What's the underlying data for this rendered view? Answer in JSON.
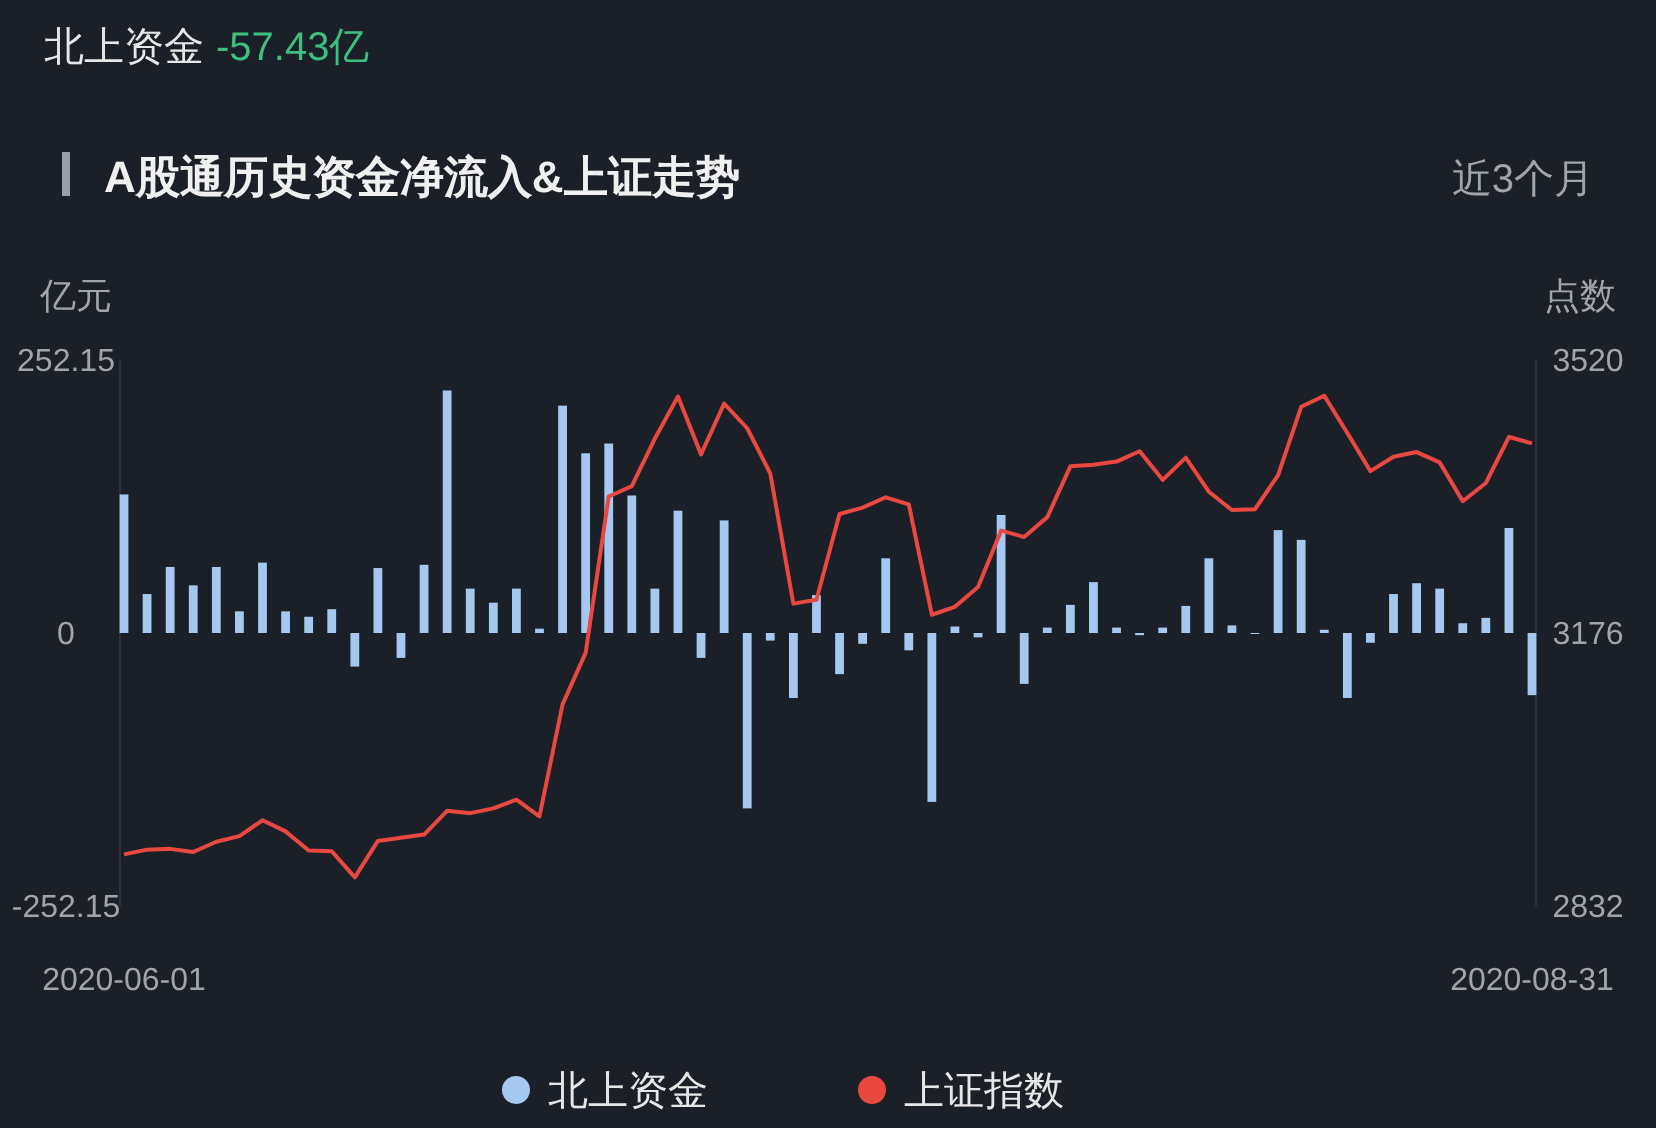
{
  "chart_data": {
    "type": "bar",
    "title": "A股通历史资金净流入&上证走势",
    "annotations": [
      "北上资金 -57.43亿",
      "近3个月"
    ],
    "ylabel": "亿元",
    "y2label": "点数",
    "categories": [
      "2020-06-01",
      null,
      null,
      null,
      null,
      null,
      null,
      null,
      null,
      null,
      null,
      null,
      null,
      null,
      null,
      null,
      null,
      null,
      null,
      null,
      null,
      null,
      null,
      null,
      null,
      null,
      null,
      null,
      null,
      null,
      null,
      null,
      null,
      null,
      null,
      null,
      null,
      null,
      null,
      null,
      null,
      null,
      null,
      null,
      null,
      null,
      null,
      null,
      null,
      null,
      null,
      null,
      null,
      null,
      null,
      null,
      null,
      null,
      null,
      null,
      null,
      "2020-08-31"
    ],
    "series": [
      {
        "name": "北上资金",
        "color": "#a4c8f0",
        "values": [
          128,
          36,
          61,
          44,
          61,
          20,
          65,
          20,
          15,
          22,
          -31,
          60,
          -23,
          63,
          224,
          41,
          28,
          41,
          4,
          210,
          166,
          175,
          127,
          41,
          113,
          -23,
          104,
          -162,
          -7,
          -60,
          35,
          -38,
          -10,
          69,
          -16,
          -156,
          6,
          -4,
          109,
          -47,
          5,
          26,
          47,
          5,
          -2,
          5,
          25,
          69,
          7,
          0,
          95,
          86,
          3,
          -60,
          -9,
          36,
          46,
          41,
          9,
          14,
          97,
          -57.43
        ]
      },
      {
        "name": "上证指数",
        "type": "line",
        "axis": "y2",
        "color": "#e8483f",
        "values": [
          2897,
          2903,
          2904,
          2900,
          2913,
          2920,
          2940,
          2926,
          2902,
          2901,
          2868,
          2914,
          2918,
          2922,
          2952,
          2949,
          2955,
          2966,
          2945,
          3086,
          3151,
          3348,
          3361,
          3421,
          3474,
          3401,
          3465,
          3434,
          3377,
          3213,
          3218,
          3326,
          3334,
          3347,
          3338,
          3199,
          3209,
          3234,
          3305,
          3297,
          3322,
          3386,
          3388,
          3392,
          3405,
          3369,
          3397,
          3354,
          3331,
          3332,
          3375,
          3461,
          3475,
          3428,
          3380,
          3398,
          3404,
          3391,
          3342,
          3365,
          3423,
          3415
        ]
      }
    ],
    "ylim": [
      -252.15,
      252.15
    ],
    "yticks": [
      252.15,
      0,
      -252.15
    ],
    "y2lim": [
      2832,
      3520
    ],
    "y2ticks": [
      3520,
      3176,
      2832
    ],
    "legend": "bottom"
  }
}
